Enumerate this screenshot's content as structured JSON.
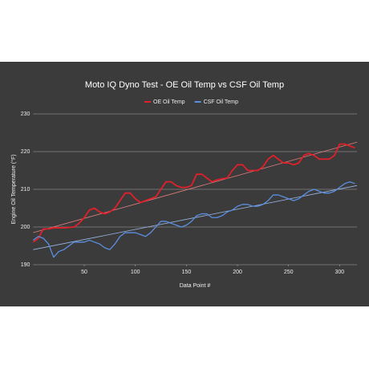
{
  "chart_data": {
    "type": "line",
    "title": "Moto IQ Dyno Test - OE Oil Temp vs CSF Oil Temp",
    "x_label": "Data Point #",
    "y_label": "Engine Oil Temperature (°F)",
    "x": [
      0,
      5,
      10,
      15,
      20,
      25,
      30,
      35,
      40,
      45,
      50,
      55,
      60,
      65,
      70,
      75,
      80,
      85,
      90,
      95,
      100,
      105,
      110,
      115,
      120,
      125,
      130,
      135,
      140,
      145,
      150,
      155,
      160,
      165,
      170,
      175,
      180,
      185,
      190,
      195,
      200,
      205,
      210,
      215,
      220,
      225,
      230,
      235,
      240,
      245,
      250,
      255,
      260,
      265,
      270,
      275,
      280,
      285,
      290,
      295,
      300,
      305,
      310,
      315
    ],
    "series": [
      {
        "name": "OE Oil Temp",
        "color": "#e0202a",
        "values": [
          196,
          197,
          199.5,
          199.5,
          199.8,
          199.8,
          199.8,
          199.9,
          200,
          201,
          202.5,
          204.5,
          205,
          204,
          203.5,
          204,
          205,
          207,
          209,
          209,
          207.5,
          206.5,
          207,
          207.5,
          208,
          210,
          212,
          212,
          211,
          210.5,
          210.5,
          211,
          214,
          214,
          213,
          212,
          212.5,
          212.8,
          213,
          215,
          216.5,
          216.5,
          215,
          215,
          215,
          216,
          218,
          219,
          218,
          217,
          217,
          216.5,
          217,
          219,
          219.5,
          219,
          218,
          218,
          218,
          219,
          222,
          222,
          221.5,
          221
        ],
        "trend": {
          "color": "#e88080",
          "x": [
            0,
            317
          ],
          "values": [
            198.5,
            222.5
          ]
        }
      },
      {
        "name": "CSF Oil Temp",
        "color": "#5b8fe0",
        "values": [
          196.5,
          197.5,
          197,
          195.5,
          192,
          193.5,
          194,
          195,
          196,
          196,
          196,
          196.5,
          196,
          195.5,
          194.5,
          194,
          195.5,
          197.5,
          198.5,
          198.5,
          198.5,
          198,
          197.5,
          198.5,
          200,
          201.5,
          201.5,
          201,
          200.5,
          200,
          200.5,
          201.5,
          203,
          203.5,
          203.5,
          202.5,
          202.5,
          203,
          204,
          204.5,
          205.5,
          206,
          206,
          205.5,
          205.5,
          206,
          207,
          208.5,
          208.5,
          208,
          207.5,
          207,
          207.5,
          208.5,
          209.5,
          210,
          209.5,
          209,
          209,
          209.5,
          210.5,
          211.5,
          212,
          211.5
        ],
        "trend": {
          "color": "#9ab8e8",
          "x": [
            0,
            317
          ],
          "values": [
            194,
            211
          ]
        }
      }
    ],
    "xlim": [
      0,
      317
    ],
    "xticks": [
      50,
      100,
      150,
      200,
      250,
      300
    ],
    "ylim": [
      190,
      230
    ],
    "yticks": [
      190,
      200,
      210,
      220,
      230
    ],
    "grid": true,
    "legend": "top"
  }
}
